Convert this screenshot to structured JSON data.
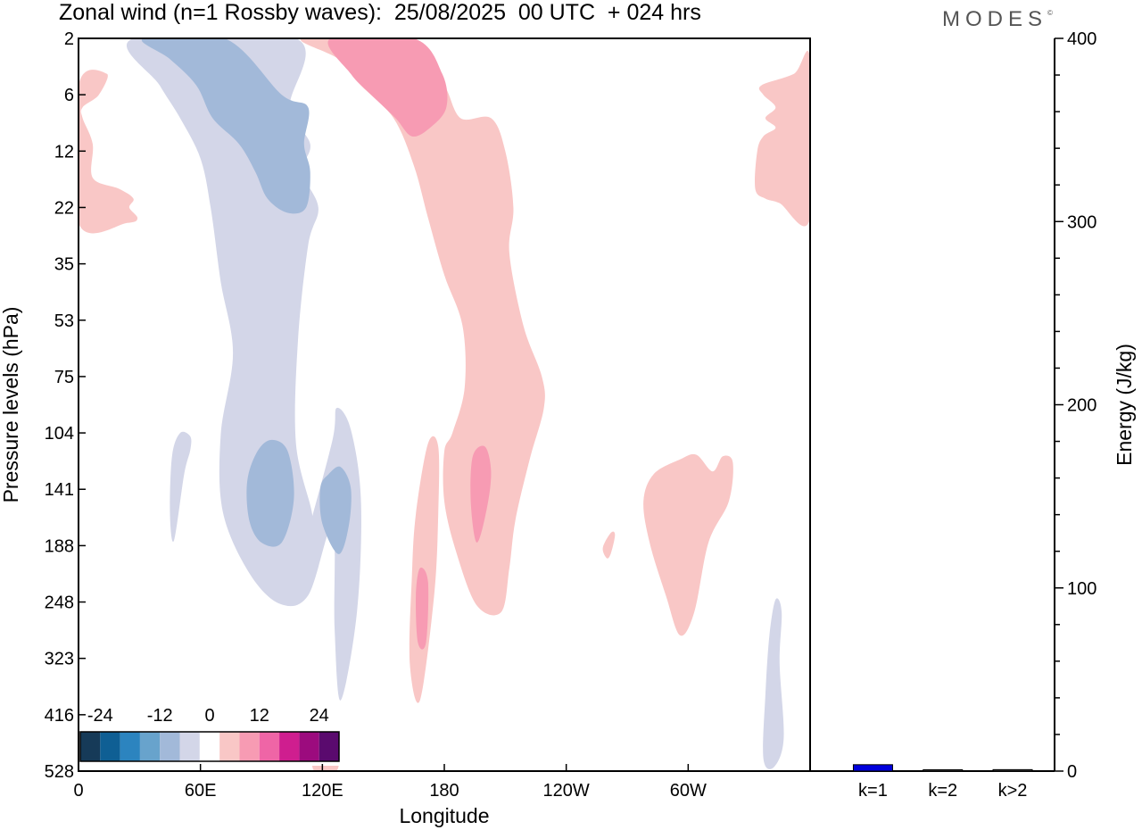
{
  "title": "Zonal wind (n=1 Rossby waves):  25/08/2025  00 UTC  + 024 hrs",
  "brand": "MODES",
  "brand_mark": "©",
  "chart_data": [
    {
      "type": "heatmap",
      "title": "Zonal wind (n=1 Rossby waves):  25/08/2025  00 UTC  + 024 hrs",
      "xlabel": "Longitude",
      "ylabel": "Pressure levels (hPa)",
      "x_ticks": [
        "0",
        "60E",
        "120E",
        "180",
        "120W",
        "60W"
      ],
      "x_tick_values": [
        0,
        60,
        120,
        180,
        240,
        300
      ],
      "xlim": [
        0,
        360
      ],
      "y_ticks": [
        "2",
        "6",
        "12",
        "22",
        "35",
        "53",
        "75",
        "104",
        "141",
        "188",
        "248",
        "323",
        "416",
        "528"
      ],
      "y_reversed": true,
      "colorbar": {
        "labels": [
          "-24",
          "-12",
          "0",
          "12",
          "24"
        ],
        "label_values": [
          -24,
          -12,
          0,
          12,
          24
        ],
        "bins": [
          -28,
          -24,
          -20,
          -16,
          -12,
          -8,
          -4,
          4,
          8,
          12,
          16,
          20,
          24,
          28
        ],
        "colors": [
          "#163a58",
          "#0f5f94",
          "#2c84bf",
          "#68a3cc",
          "#a2b9d9",
          "#d3d6e8",
          "#ffffff",
          "#f9c7c6",
          "#f79bb3",
          "#ef65a6",
          "#cf1e8f",
          "#9c0b7e",
          "#5a0a6e"
        ]
      },
      "regions": [
        {
          "name": "neg-upper-outer",
          "value": -6,
          "points": [
            [
              27,
              2
            ],
            [
              107,
              2
            ],
            [
              104,
              7
            ],
            [
              114,
              11
            ],
            [
              110,
              15
            ],
            [
              118,
              22
            ],
            [
              113,
              30
            ],
            [
              108,
              60
            ],
            [
              107,
              110
            ],
            [
              115,
              160
            ],
            [
              113,
              175
            ],
            [
              125,
              108
            ],
            [
              127,
              90
            ],
            [
              134,
              102
            ],
            [
              139,
              150
            ],
            [
              137,
              260
            ],
            [
              129,
              390
            ],
            [
              126,
              280
            ],
            [
              125,
              170
            ],
            [
              113,
              240
            ],
            [
              99,
              250
            ],
            [
              84,
              215
            ],
            [
              71,
              158
            ],
            [
              70,
              105
            ],
            [
              76,
              65
            ],
            [
              70,
              40
            ],
            [
              65,
              22
            ],
            [
              60,
              13
            ],
            [
              50,
              8
            ],
            [
              40,
              5
            ]
          ]
        },
        {
          "name": "neg-upper-inner",
          "value": -10,
          "points": [
            [
              32,
              2
            ],
            [
              72,
              2
            ],
            [
              100,
              6
            ],
            [
              113,
              7
            ],
            [
              111,
              11
            ],
            [
              114,
              15
            ],
            [
              112,
              22
            ],
            [
              103,
              23
            ],
            [
              93,
              20
            ],
            [
              87,
              15
            ],
            [
              79,
              11
            ],
            [
              66,
              8
            ],
            [
              58,
              5
            ],
            [
              45,
              3
            ]
          ]
        },
        {
          "name": "neg-mid-inner",
          "value": -10,
          "points": [
            [
              95,
              108
            ],
            [
              103,
              115
            ],
            [
              106,
              148
            ],
            [
              100,
              185
            ],
            [
              90,
              185
            ],
            [
              84,
              165
            ],
            [
              83,
              135
            ],
            [
              88,
              115
            ]
          ]
        },
        {
          "name": "neg-mid-inner-2",
          "value": -10,
          "points": [
            [
              129,
              125
            ],
            [
              134,
              140
            ],
            [
              133,
              170
            ],
            [
              128,
              196
            ],
            [
              120,
              168
            ],
            [
              119,
              140
            ],
            [
              123,
              130
            ]
          ]
        },
        {
          "name": "neg-small",
          "value": -6,
          "points": [
            [
              50,
              104
            ],
            [
              55,
              106
            ],
            [
              55,
              114
            ],
            [
              52,
              130
            ],
            [
              47,
              183
            ],
            [
              45,
              160
            ],
            [
              46,
              118
            ]
          ]
        },
        {
          "name": "neg-east",
          "value": -6,
          "points": [
            [
              343,
              245
            ],
            [
              346,
              260
            ],
            [
              345,
              330
            ],
            [
              347,
              460
            ],
            [
              342,
              520
            ],
            [
              337,
              500
            ],
            [
              338,
              380
            ],
            [
              340,
              290
            ]
          ]
        },
        {
          "name": "pos-band",
          "value": 6,
          "points": [
            [
              110,
              2
            ],
            [
              155,
              2
            ],
            [
              168,
              3
            ],
            [
              180,
              5
            ],
            [
              188,
              8
            ],
            [
              203,
              8
            ],
            [
              210,
              12
            ],
            [
              214,
              22
            ],
            [
              212,
              32
            ],
            [
              219,
              55
            ],
            [
              228,
              75
            ],
            [
              229,
              90
            ],
            [
              222,
              120
            ],
            [
              215,
              165
            ],
            [
              212,
              210
            ],
            [
              208,
              260
            ],
            [
              196,
              252
            ],
            [
              186,
              195
            ],
            [
              180,
              150
            ],
            [
              180,
              115
            ],
            [
              184,
              104
            ],
            [
              190,
              80
            ],
            [
              189,
              55
            ],
            [
              180,
              38
            ],
            [
              172,
              24
            ],
            [
              165,
              14
            ],
            [
              155,
              8
            ],
            [
              139,
              5
            ],
            [
              128,
              3
            ]
          ]
        },
        {
          "name": "pos-band-upper-inner",
          "value": 10,
          "points": [
            [
              124,
              2
            ],
            [
              165,
              2
            ],
            [
              179,
              4
            ],
            [
              181,
              7
            ],
            [
              173,
              9
            ],
            [
              164,
              10
            ],
            [
              156,
              8
            ],
            [
              144,
              6
            ],
            [
              134,
              4
            ]
          ]
        },
        {
          "name": "pos-mid-inner",
          "value": 10,
          "points": [
            [
              200,
              112
            ],
            [
              203,
              128
            ],
            [
              201,
              155
            ],
            [
              196,
              185
            ],
            [
              193,
              150
            ],
            [
              194,
              118
            ]
          ]
        },
        {
          "name": "pos-lower-band",
          "value": 6,
          "points": [
            [
              172,
              110
            ],
            [
              177,
              112
            ],
            [
              177,
              160
            ],
            [
              175,
              240
            ],
            [
              168,
              390
            ],
            [
              163,
              330
            ],
            [
              164,
              220
            ],
            [
              166,
              160
            ]
          ]
        },
        {
          "name": "pos-lower-inner",
          "value": 10,
          "points": [
            [
              168,
              210
            ],
            [
              172,
              225
            ],
            [
              171,
              300
            ],
            [
              167,
              300
            ],
            [
              166,
              240
            ]
          ]
        },
        {
          "name": "pos-west-upper",
          "value": 6,
          "points": [
            [
              0,
              5
            ],
            [
              14,
              4
            ],
            [
              10,
              6
            ],
            [
              2,
              7
            ],
            [
              2,
              8
            ],
            [
              7,
              11
            ],
            [
              7,
              16
            ],
            [
              20,
              18
            ],
            [
              27,
              20
            ],
            [
              25,
              22
            ],
            [
              29,
              24
            ],
            [
              24,
              25
            ],
            [
              0,
              25
            ]
          ]
        },
        {
          "name": "pos-east-upper",
          "value": 6,
          "points": [
            [
              360,
              3
            ],
            [
              352,
              4
            ],
            [
              336,
              5
            ],
            [
              337,
              6
            ],
            [
              343,
              7
            ],
            [
              338,
              8
            ],
            [
              343,
              9
            ],
            [
              337,
              10
            ],
            [
              334,
              12
            ],
            [
              333,
              18
            ],
            [
              338,
              20
            ],
            [
              345,
              21
            ],
            [
              360,
              24
            ]
          ]
        },
        {
          "name": "pos-east-mid",
          "value": 6,
          "points": [
            [
              296,
              120
            ],
            [
              304,
              117
            ],
            [
              312,
              128
            ],
            [
              317,
              118
            ],
            [
              322,
              122
            ],
            [
              320,
              150
            ],
            [
              310,
              185
            ],
            [
              303,
              260
            ],
            [
              296,
              290
            ],
            [
              289,
              240
            ],
            [
              281,
              185
            ],
            [
              278,
              150
            ],
            [
              283,
              130
            ]
          ]
        },
        {
          "name": "pos-small-dot",
          "value": 6,
          "points": [
            [
              262,
              176
            ],
            [
              264,
              178
            ],
            [
              262,
              195
            ],
            [
              260,
              200
            ],
            [
              258,
              190
            ]
          ]
        },
        {
          "name": "pos-bottom-tip",
          "value": 6,
          "points": [
            [
              116,
              470
            ],
            [
              127,
              470
            ],
            [
              127,
              528
            ],
            [
              116,
              528
            ]
          ]
        }
      ]
    },
    {
      "type": "bar",
      "categories": [
        "k=1",
        "k=2",
        "k>2"
      ],
      "values": [
        3.5,
        0.3,
        0.8
      ],
      "colors": [
        "#0000dd",
        "#444444",
        "#444444"
      ],
      "ylabel": "Energy (J/kg)",
      "ylim": [
        0,
        400
      ],
      "y_ticks": [
        0,
        100,
        200,
        300,
        400
      ]
    }
  ]
}
